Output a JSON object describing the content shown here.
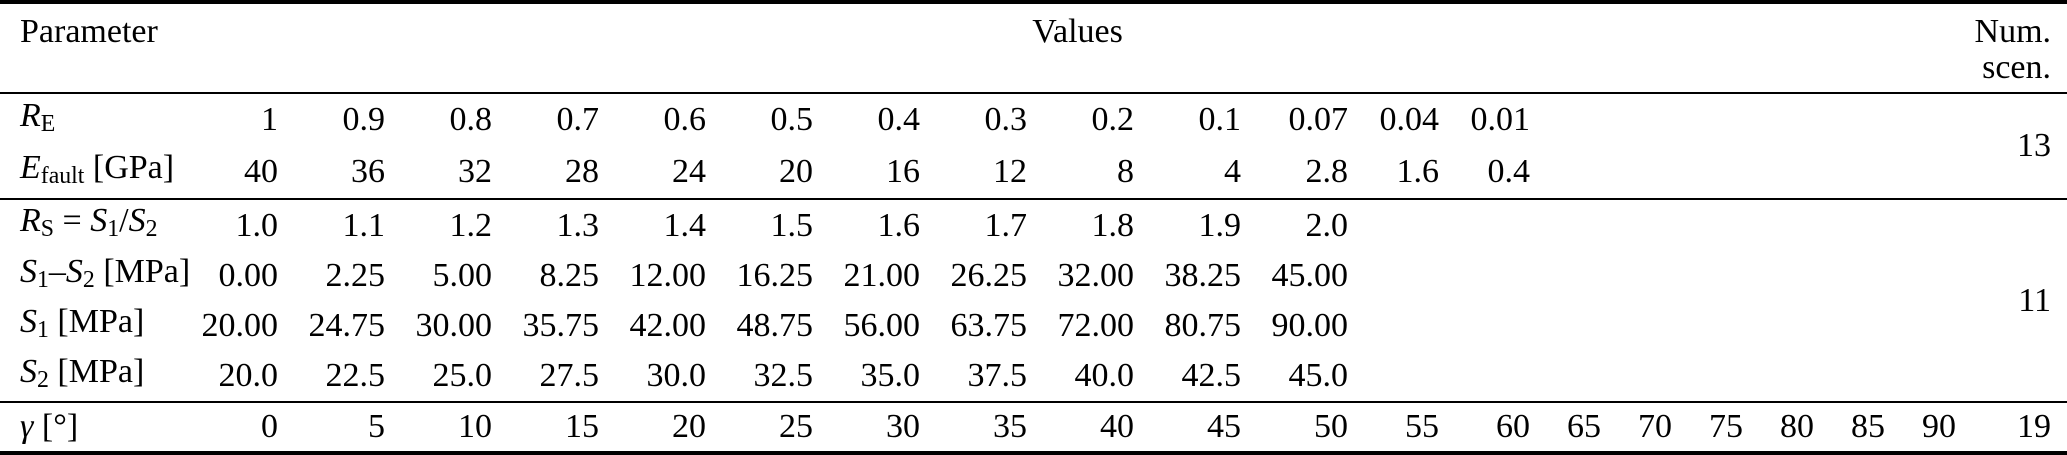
{
  "table": {
    "headers": {
      "parameter": "Parameter",
      "values": "Values",
      "num_scen": [
        "Num.",
        "scen."
      ]
    },
    "value_col_count": 19,
    "groups": [
      {
        "num_scen": "13",
        "rows": [
          {
            "label": [
              [
                "R",
                "it"
              ],
              [
                "E",
                "sub"
              ]
            ],
            "values": [
              "1",
              "0.9",
              "0.8",
              "0.7",
              "0.6",
              "0.5",
              "0.4",
              "0.3",
              "0.2",
              "0.1",
              "0.07",
              "0.04",
              "0.01"
            ]
          },
          {
            "label": [
              [
                "E",
                "it"
              ],
              [
                "fault",
                "sub"
              ],
              [
                " [GPa]",
                "up"
              ]
            ],
            "values": [
              "40",
              "36",
              "32",
              "28",
              "24",
              "20",
              "16",
              "12",
              "8",
              "4",
              "2.8",
              "1.6",
              "0.4"
            ]
          }
        ]
      },
      {
        "num_scen": "11",
        "rows": [
          {
            "label": [
              [
                "R",
                "it"
              ],
              [
                "S",
                "sub"
              ],
              [
                " = ",
                "up"
              ],
              [
                "S",
                "it"
              ],
              [
                "1",
                "sub"
              ],
              [
                "/",
                "up"
              ],
              [
                "S",
                "it"
              ],
              [
                "2",
                "sub"
              ]
            ],
            "values": [
              "1.0",
              "1.1",
              "1.2",
              "1.3",
              "1.4",
              "1.5",
              "1.6",
              "1.7",
              "1.8",
              "1.9",
              "2.0"
            ]
          },
          {
            "label": [
              [
                "S",
                "it"
              ],
              [
                "1",
                "sub"
              ],
              [
                "–",
                "up"
              ],
              [
                "S",
                "it"
              ],
              [
                "2",
                "sub"
              ],
              [
                " [MPa]",
                "up"
              ]
            ],
            "values": [
              "0.00",
              "2.25",
              "5.00",
              "8.25",
              "12.00",
              "16.25",
              "21.00",
              "26.25",
              "32.00",
              "38.25",
              "45.00"
            ]
          },
          {
            "label": [
              [
                "S",
                "it"
              ],
              [
                "1",
                "sub"
              ],
              [
                " [MPa]",
                "up"
              ]
            ],
            "values": [
              "20.00",
              "24.75",
              "30.00",
              "35.75",
              "42.00",
              "48.75",
              "56.00",
              "63.75",
              "72.00",
              "80.75",
              "90.00"
            ]
          },
          {
            "label": [
              [
                "S",
                "it"
              ],
              [
                "2",
                "sub"
              ],
              [
                " [MPa]",
                "up"
              ]
            ],
            "values": [
              "20.0",
              "22.5",
              "25.0",
              "27.5",
              "30.0",
              "32.5",
              "35.0",
              "37.5",
              "40.0",
              "42.5",
              "45.0"
            ]
          }
        ]
      },
      {
        "num_scen": "19",
        "rows": [
          {
            "label": [
              [
                "γ",
                "it"
              ],
              [
                " [°]",
                "up"
              ]
            ],
            "values": [
              "0",
              "5",
              "10",
              "15",
              "20",
              "25",
              "30",
              "35",
              "40",
              "45",
              "50",
              "55",
              "60",
              "65",
              "70",
              "75",
              "80",
              "85",
              "90"
            ]
          }
        ]
      }
    ]
  }
}
